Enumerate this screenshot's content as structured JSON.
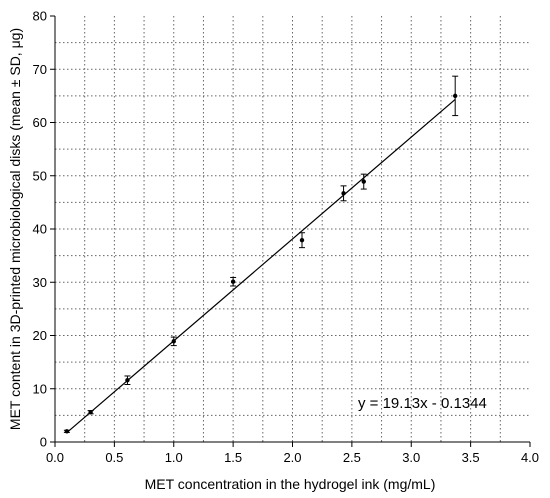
{
  "chart_data": {
    "type": "scatter",
    "xlabel": "MET concentration in the hydrogel ink (mg/mL)",
    "ylabel": "MET content in 3D-printed microbiological disks (mean ± SD, μg)",
    "xlim": [
      0.0,
      4.0
    ],
    "ylim": [
      0,
      80
    ],
    "x_ticks": [
      "0.0",
      "0.5",
      "1.0",
      "1.5",
      "2.0",
      "2.5",
      "3.0",
      "3.5",
      "4.0"
    ],
    "y_ticks": [
      "0",
      "10",
      "20",
      "30",
      "40",
      "50",
      "60",
      "70",
      "80"
    ],
    "x_tick_values": [
      0.0,
      0.5,
      1.0,
      1.5,
      2.0,
      2.5,
      3.0,
      3.5,
      4.0
    ],
    "y_tick_values": [
      0,
      10,
      20,
      30,
      40,
      50,
      60,
      70,
      80
    ],
    "grid": true,
    "points": [
      {
        "x": 0.1,
        "y": 2.0,
        "sd": 0.2
      },
      {
        "x": 0.3,
        "y": 5.6,
        "sd": 0.3
      },
      {
        "x": 0.61,
        "y": 11.6,
        "sd": 0.8
      },
      {
        "x": 1.0,
        "y": 18.9,
        "sd": 0.8
      },
      {
        "x": 1.5,
        "y": 30.1,
        "sd": 0.8
      },
      {
        "x": 2.08,
        "y": 37.9,
        "sd": 1.4
      },
      {
        "x": 2.43,
        "y": 46.7,
        "sd": 1.4
      },
      {
        "x": 2.6,
        "y": 48.9,
        "sd": 1.4
      },
      {
        "x": 3.37,
        "y": 65.0,
        "sd": 3.7
      }
    ],
    "fit": {
      "slope": 19.13,
      "intercept": -0.1344,
      "x_range": [
        0.1,
        3.37
      ]
    },
    "equation_label": "y = 19.13x - 0.1344"
  }
}
